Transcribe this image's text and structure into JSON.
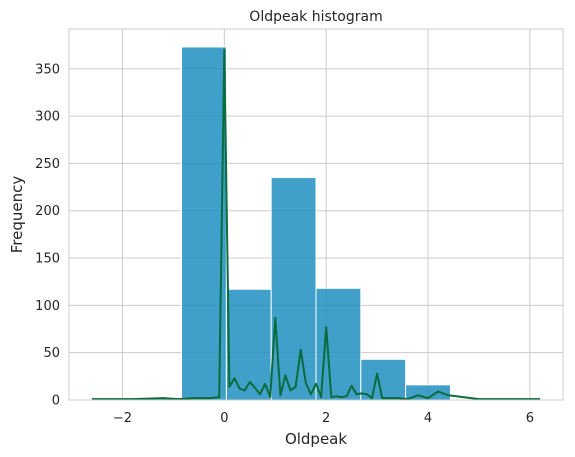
{
  "chart_data": {
    "type": "bar",
    "title": "Oldpeak histogram",
    "xlabel": "Oldpeak",
    "ylabel": "Frequency",
    "xlim": [
      -3.05,
      6.65
    ],
    "ylim": [
      0,
      392
    ],
    "xticks": [
      -2,
      0,
      2,
      4,
      6
    ],
    "xtick_labels": [
      "−2",
      "0",
      "2",
      "4",
      "6"
    ],
    "yticks": [
      0,
      50,
      100,
      150,
      200,
      250,
      300,
      350
    ],
    "ytick_labels": [
      "0",
      "50",
      "100",
      "150",
      "200",
      "250",
      "300",
      "350"
    ],
    "grid": true,
    "bar_color": "#1f8fbf",
    "line_color": "#0a6b3c",
    "bins": [
      {
        "x0": -2.6,
        "x1": -1.72,
        "value": 1
      },
      {
        "x0": -1.72,
        "x1": -0.84,
        "value": 2
      },
      {
        "x0": -0.84,
        "x1": 0.04,
        "value": 373
      },
      {
        "x0": 0.04,
        "x1": 0.92,
        "value": 117
      },
      {
        "x0": 0.92,
        "x1": 1.8,
        "value": 235
      },
      {
        "x0": 1.8,
        "x1": 2.68,
        "value": 118
      },
      {
        "x0": 2.68,
        "x1": 3.56,
        "value": 43
      },
      {
        "x0": 3.56,
        "x1": 4.44,
        "value": 16
      },
      {
        "x0": 4.44,
        "x1": 5.32,
        "value": 1
      },
      {
        "x0": 5.32,
        "x1": 6.2,
        "value": 1
      }
    ],
    "line": {
      "x": [
        -2.6,
        -1.8,
        -1.2,
        -0.9,
        -0.6,
        -0.3,
        -0.1,
        0.0,
        0.1,
        0.2,
        0.3,
        0.4,
        0.5,
        0.6,
        0.7,
        0.8,
        0.9,
        1.0,
        1.1,
        1.2,
        1.3,
        1.4,
        1.5,
        1.6,
        1.7,
        1.8,
        1.9,
        2.0,
        2.1,
        2.2,
        2.3,
        2.4,
        2.5,
        2.6,
        2.7,
        2.8,
        2.9,
        3.0,
        3.1,
        3.2,
        3.4,
        3.6,
        3.8,
        4.0,
        4.2,
        4.4,
        5.0,
        5.6,
        6.2
      ],
      "y": [
        1,
        1,
        2,
        1,
        2,
        2,
        3,
        370,
        14,
        23,
        12,
        10,
        19,
        13,
        6,
        17,
        3,
        87,
        5,
        26,
        10,
        14,
        53,
        18,
        6,
        17,
        3,
        77,
        3,
        4,
        3,
        4,
        15,
        6,
        7,
        6,
        2,
        28,
        2,
        2,
        2,
        1,
        5,
        2,
        9,
        5,
        1,
        1,
        1
      ]
    }
  }
}
